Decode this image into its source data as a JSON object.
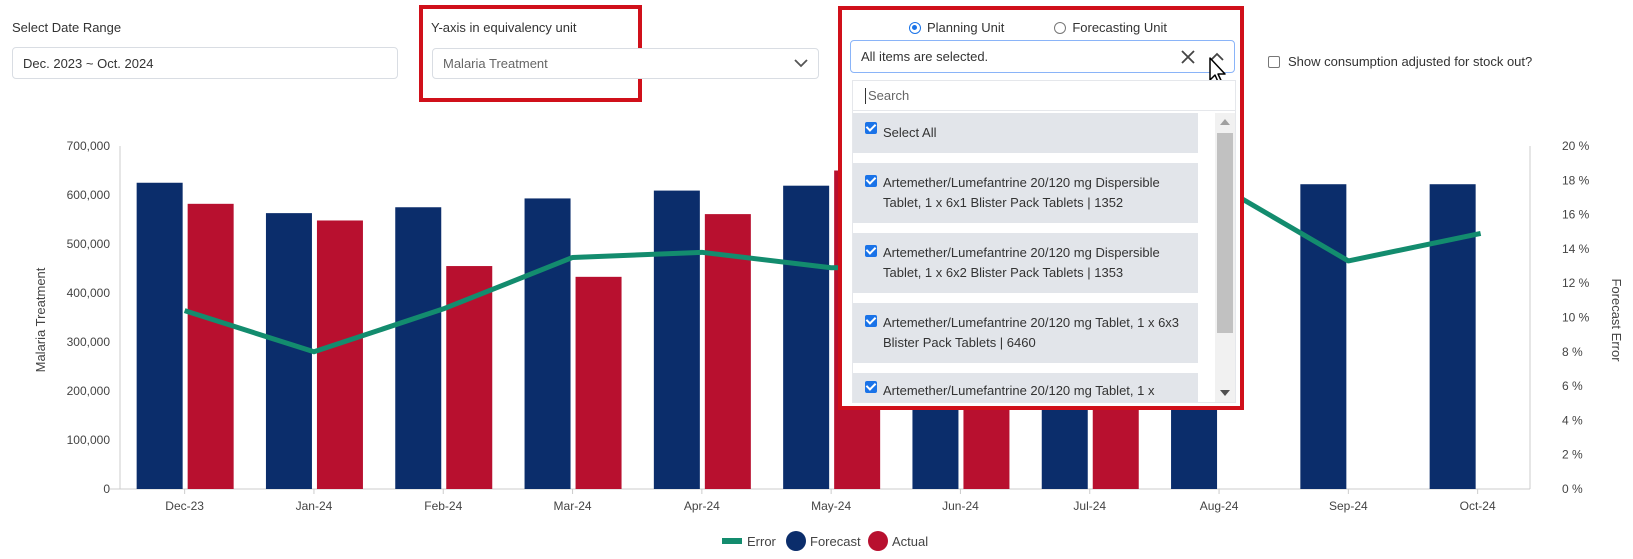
{
  "filters": {
    "date_range_label": "Select Date Range",
    "date_range_value": "Dec. 2023 ~ Oct. 2024",
    "yaxis_label": "Y-axis in equivalency unit",
    "yaxis_value": "Malaria Treatment",
    "planning_unit_label": "Planning Unit",
    "forecasting_unit_label": "Forecasting Unit",
    "selected_unit": "Planning Unit",
    "multiselect_value": "All items are selected.",
    "search_placeholder": "Search",
    "stockout_label": "Show consumption adjusted for stock out?",
    "items": [
      {
        "label": "Select All",
        "checked": true
      },
      {
        "label": "Artemether/Lumefantrine 20/120 mg Dispersible Tablet, 1 x 6x1 Blister Pack Tablets | 1352",
        "checked": true
      },
      {
        "label": "Artemether/Lumefantrine 20/120 mg Dispersible Tablet, 1 x 6x2 Blister Pack Tablets | 1353",
        "checked": true
      },
      {
        "label": "Artemether/Lumefantrine 20/120 mg Tablet, 1 x 6x3 Blister Pack Tablets | 6460",
        "checked": true
      },
      {
        "label": "Artemether/Lumefantrine 20/120 mg Tablet, 1 x",
        "checked": true
      }
    ]
  },
  "colors": {
    "forecast": "#0b2d6b",
    "actual": "#b8102f",
    "error": "#138c6e",
    "highlight": "#d0101a",
    "accent": "#1a73e8"
  },
  "icons": {
    "clear": "close-icon",
    "collapse": "chevron-up-icon",
    "dropdown": "chevron-down-icon",
    "cursor": "mouse-pointer-icon"
  },
  "chart_data": {
    "type": "bar",
    "categories": [
      "Dec-23",
      "Jan-24",
      "Feb-24",
      "Mar-24",
      "Apr-24",
      "May-24",
      "Jun-24",
      "Jul-24",
      "Aug-24",
      "Sep-24",
      "Oct-24"
    ],
    "series": [
      {
        "name": "Forecast",
        "type": "bar",
        "axis": "left",
        "values": [
          625000,
          563000,
          575000,
          593000,
          609000,
          619000,
          460000,
          455000,
          460000,
          622000,
          622000
        ]
      },
      {
        "name": "Actual",
        "type": "bar",
        "axis": "left",
        "values": [
          582000,
          548000,
          455000,
          433000,
          561000,
          650000,
          450000,
          455000,
          null,
          null,
          null
        ]
      },
      {
        "name": "Error",
        "type": "line",
        "axis": "right",
        "values": [
          10.4,
          8.0,
          10.5,
          13.5,
          13.8,
          12.9,
          13.0,
          17.0,
          17.7,
          13.3,
          14.9
        ]
      }
    ],
    "ylabel": "Malaria Treatment",
    "y2label": "Forecast Error",
    "ylim": [
      0,
      700000
    ],
    "yticks": [
      "0",
      "100,000",
      "200,000",
      "300,000",
      "400,000",
      "500,000",
      "600,000",
      "700,000"
    ],
    "y2lim": [
      0,
      20
    ],
    "y2ticks": [
      "0 %",
      "2 %",
      "4 %",
      "6 %",
      "8 %",
      "10 %",
      "12 %",
      "14 %",
      "16 %",
      "18 %",
      "20 %"
    ],
    "legend": [
      "Error",
      "Forecast",
      "Actual"
    ],
    "legend_position": "bottom",
    "grid": false
  }
}
